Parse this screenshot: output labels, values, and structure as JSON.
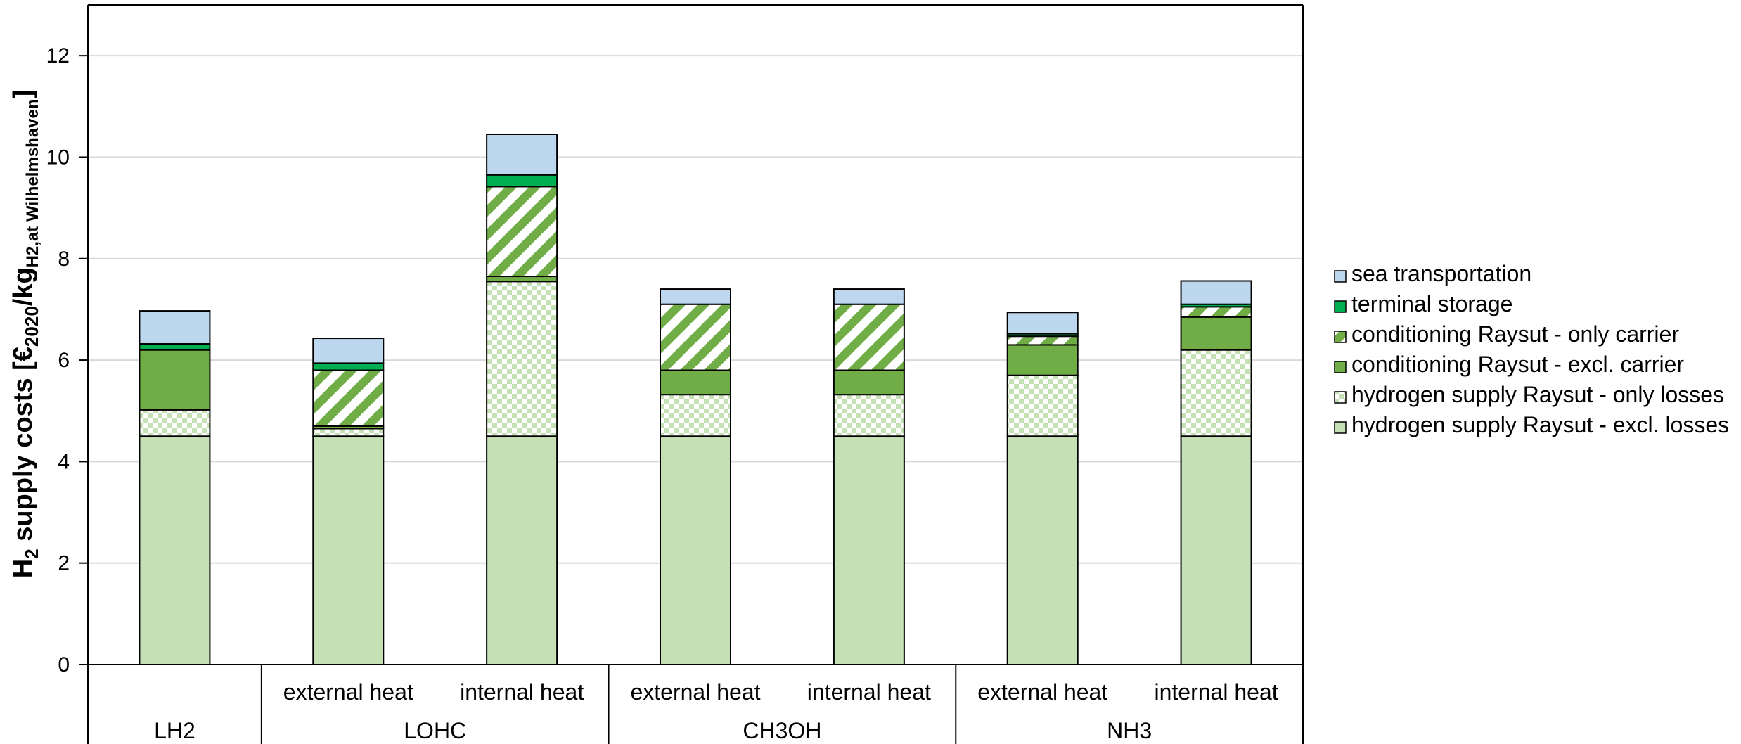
{
  "chart_data": {
    "type": "bar",
    "stacked": true,
    "title": "",
    "ylabel": {
      "main": "H",
      "sub1": "2",
      "mid": " supply costs [€",
      "sub2": "2020",
      "mid2": "/kg",
      "sub3": "H2,at Wilhelmshaven",
      "end": "]"
    },
    "ylim": [
      0,
      13
    ],
    "yticks": [
      0,
      2,
      4,
      6,
      8,
      10,
      12
    ],
    "grid": true,
    "legend_position": "right",
    "categories": [
      {
        "sub": "",
        "group": "LH2"
      },
      {
        "sub": "external heat",
        "group": "LOHC"
      },
      {
        "sub": "internal heat",
        "group": "LOHC"
      },
      {
        "sub": "external heat",
        "group": "CH3OH"
      },
      {
        "sub": "internal heat",
        "group": "CH3OH"
      },
      {
        "sub": "external heat",
        "group": "NH3"
      },
      {
        "sub": "internal heat",
        "group": "NH3"
      }
    ],
    "groups": [
      {
        "label": "LH2",
        "span": 1
      },
      {
        "label": "LOHC",
        "span": 2
      },
      {
        "label": "CH3OH",
        "span": 2
      },
      {
        "label": "NH3",
        "span": 2
      }
    ],
    "series": [
      {
        "name": "hydrogen supply Raysut - excl. losses",
        "color": "#c5e0b4",
        "pattern": "solid",
        "values": [
          4.5,
          4.5,
          4.5,
          4.5,
          4.5,
          4.5,
          4.5
        ]
      },
      {
        "name": "hydrogen supply Raysut - only losses",
        "color": "#c5e0b4",
        "pattern": "checker",
        "values": [
          0.52,
          0.15,
          3.05,
          0.82,
          0.82,
          1.2,
          1.7
        ]
      },
      {
        "name": "conditioning Raysut - excl. carrier",
        "color": "#70ad47",
        "pattern": "solid",
        "values": [
          1.18,
          0.05,
          0.1,
          0.48,
          0.48,
          0.6,
          0.65
        ]
      },
      {
        "name": "conditioning Raysut - only carrier",
        "color": "#70ad47",
        "pattern": "stripes",
        "values": [
          0,
          1.1,
          1.77,
          1.3,
          1.3,
          0.17,
          0.2
        ]
      },
      {
        "name": "terminal storage",
        "color": "#00b050",
        "pattern": "solid",
        "values": [
          0.12,
          0.14,
          0.23,
          0,
          0,
          0.05,
          0.05
        ]
      },
      {
        "name": "sea transportation",
        "color": "#bdd7ee",
        "pattern": "solid",
        "values": [
          0.65,
          0.49,
          0.8,
          0.3,
          0.3,
          0.42,
          0.46
        ]
      }
    ]
  }
}
